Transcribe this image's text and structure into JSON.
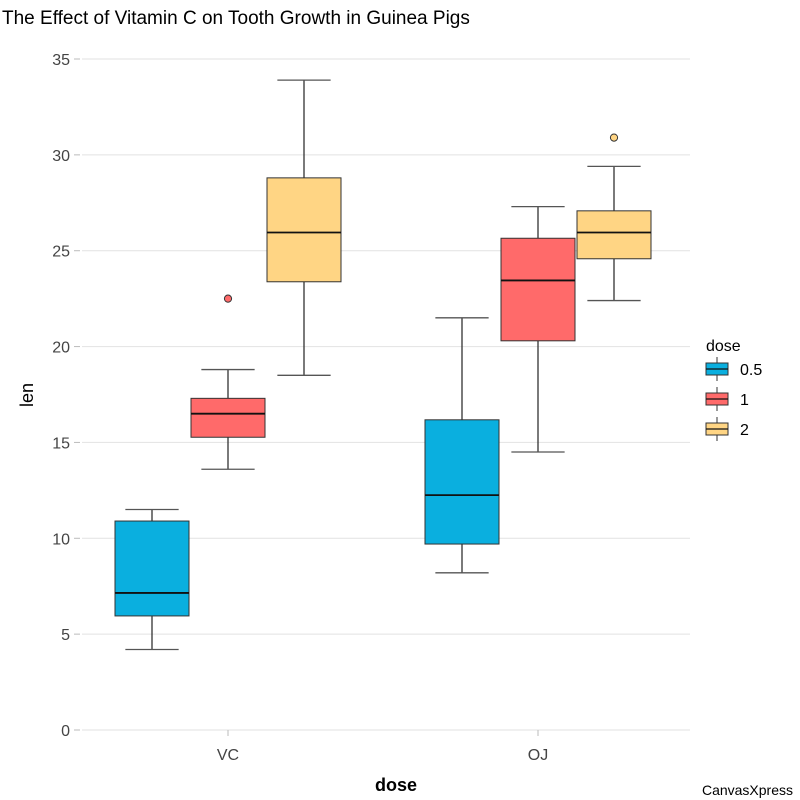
{
  "chart_data": {
    "type": "boxplot",
    "title": "The Effect of Vitamin C on Tooth Growth in Guinea Pigs",
    "xlabel": "dose",
    "ylabel": "len",
    "ylim": [
      0,
      35
    ],
    "yticks": [
      0,
      5,
      10,
      15,
      20,
      25,
      30,
      35
    ],
    "grid": true,
    "categories": [
      "VC",
      "OJ"
    ],
    "legend": {
      "title": "dose",
      "position": "right",
      "entries": [
        {
          "label": "0.5",
          "color": "#0AAFDF"
        },
        {
          "label": "1",
          "color": "#FF6A6A"
        },
        {
          "label": "2",
          "color": "#FFD584"
        }
      ]
    },
    "series": [
      {
        "name": "0.5",
        "color": "#0AAFDF",
        "values": [
          {
            "category": "VC",
            "min": 4.2,
            "q1": 5.95,
            "median": 7.15,
            "q3": 10.9,
            "max": 11.5,
            "outliers": []
          },
          {
            "category": "OJ",
            "min": 8.2,
            "q1": 9.7,
            "median": 12.25,
            "q3": 16.18,
            "max": 21.5,
            "outliers": []
          }
        ]
      },
      {
        "name": "1",
        "color": "#FF6A6A",
        "values": [
          {
            "category": "VC",
            "min": 13.6,
            "q1": 15.27,
            "median": 16.5,
            "q3": 17.3,
            "max": 18.8,
            "outliers": [
              22.5
            ]
          },
          {
            "category": "OJ",
            "min": 14.5,
            "q1": 20.3,
            "median": 23.45,
            "q3": 25.65,
            "max": 27.3,
            "outliers": []
          }
        ]
      },
      {
        "name": "2",
        "color": "#FFD584",
        "values": [
          {
            "category": "VC",
            "min": 18.5,
            "q1": 23.38,
            "median": 25.95,
            "q3": 28.8,
            "max": 33.9,
            "outliers": []
          },
          {
            "category": "OJ",
            "min": 22.4,
            "q1": 24.58,
            "median": 25.95,
            "q3": 27.08,
            "max": 29.4,
            "outliers": [
              30.9
            ]
          }
        ]
      }
    ]
  },
  "credit": "CanvasXpress"
}
